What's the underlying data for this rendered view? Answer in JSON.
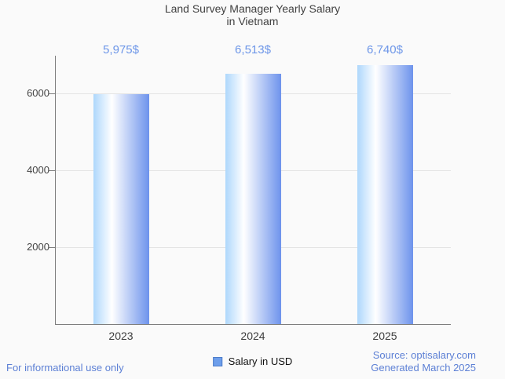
{
  "page": {
    "background": "#fafafa"
  },
  "chart_data": {
    "type": "bar",
    "title_line1": "Land Survey Manager Yearly Salary",
    "title_line2": "in Vietnam",
    "categories": [
      "2023",
      "2024",
      "2025"
    ],
    "series": [
      {
        "name": "Salary in USD",
        "values": [
          5975,
          6513,
          6740
        ]
      }
    ],
    "value_labels": [
      "5,975$",
      "6,513$",
      "6,740$"
    ],
    "xlabel": "",
    "ylabel": "",
    "yticks": [
      2000,
      4000,
      6000
    ],
    "ylim": [
      0,
      7000
    ],
    "grid": true,
    "legend_position": "bottom"
  },
  "legend": {
    "label": "Salary in USD"
  },
  "footer": {
    "disclaimer": "For informational use only",
    "source": "Source: optisalary.com",
    "generated": "Generated March 2025"
  },
  "colors": {
    "background": "#fafafa",
    "title": "#404040",
    "value_label": "#6d96e8",
    "footer_text": "#5d80d5",
    "bar_gradient_left": "#aed7fc",
    "bar_gradient_mid": "#ffffff",
    "bar_gradient_right": "#6d93ec",
    "legend_swatch": "#6d9eeb",
    "legend_swatch_border": "#4d7cc9",
    "axis": "#7d7d7d",
    "grid": "#e4e4e4",
    "tick_label": "#454545",
    "x_label": "#3d3d3d"
  }
}
